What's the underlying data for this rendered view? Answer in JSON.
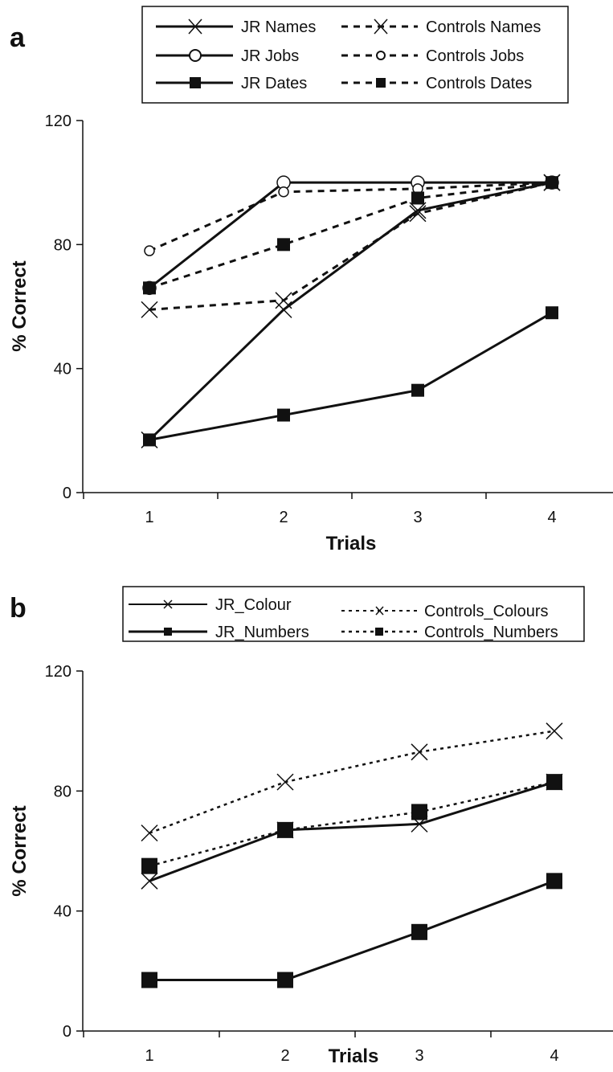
{
  "chart_data": [
    {
      "panel": "a",
      "type": "line",
      "xlabel": "Trials",
      "ylabel": "% Correct",
      "categories": [
        "1",
        "2",
        "3",
        "4"
      ],
      "ylim": [
        0,
        120
      ],
      "yticks": [
        0,
        40,
        80,
        120
      ],
      "grid": false,
      "legend_position": "top",
      "series": [
        {
          "name": "JR Names",
          "style": "solid",
          "marker": "x",
          "values": [
            17,
            59,
            91,
            100
          ]
        },
        {
          "name": "Controls Names",
          "style": "dashed",
          "marker": "x",
          "values": [
            59,
            62,
            90,
            100
          ]
        },
        {
          "name": "JR Jobs",
          "style": "solid",
          "marker": "circle",
          "values": [
            66,
            100,
            100,
            100
          ]
        },
        {
          "name": "Controls Jobs",
          "style": "dashed",
          "marker": "circle",
          "values": [
            78,
            97,
            98,
            100
          ]
        },
        {
          "name": "JR Dates",
          "style": "solid",
          "marker": "square",
          "values": [
            17,
            25,
            33,
            58
          ]
        },
        {
          "name": "Controls Dates",
          "style": "dashed",
          "marker": "square",
          "values": [
            66,
            80,
            95,
            100
          ]
        }
      ]
    },
    {
      "panel": "b",
      "type": "line",
      "xlabel": "Trials",
      "ylabel": "% Correct",
      "categories": [
        "1",
        "2",
        "3",
        "4"
      ],
      "ylim": [
        0,
        120
      ],
      "yticks": [
        0,
        40,
        80,
        120
      ],
      "grid": false,
      "legend_position": "top",
      "series": [
        {
          "name": "JR_Colour",
          "style": "solid",
          "marker": "x",
          "values": [
            50,
            67,
            69,
            83
          ]
        },
        {
          "name": "Controls_Colours",
          "style": "dotted",
          "marker": "x",
          "values": [
            66,
            83,
            93,
            100
          ]
        },
        {
          "name": "JR_Numbers",
          "style": "solid",
          "marker": "square",
          "values": [
            17,
            17,
            33,
            50
          ]
        },
        {
          "name": "Controls_Numbers",
          "style": "dotted",
          "marker": "square",
          "values": [
            55,
            67,
            73,
            83
          ]
        }
      ]
    }
  ]
}
